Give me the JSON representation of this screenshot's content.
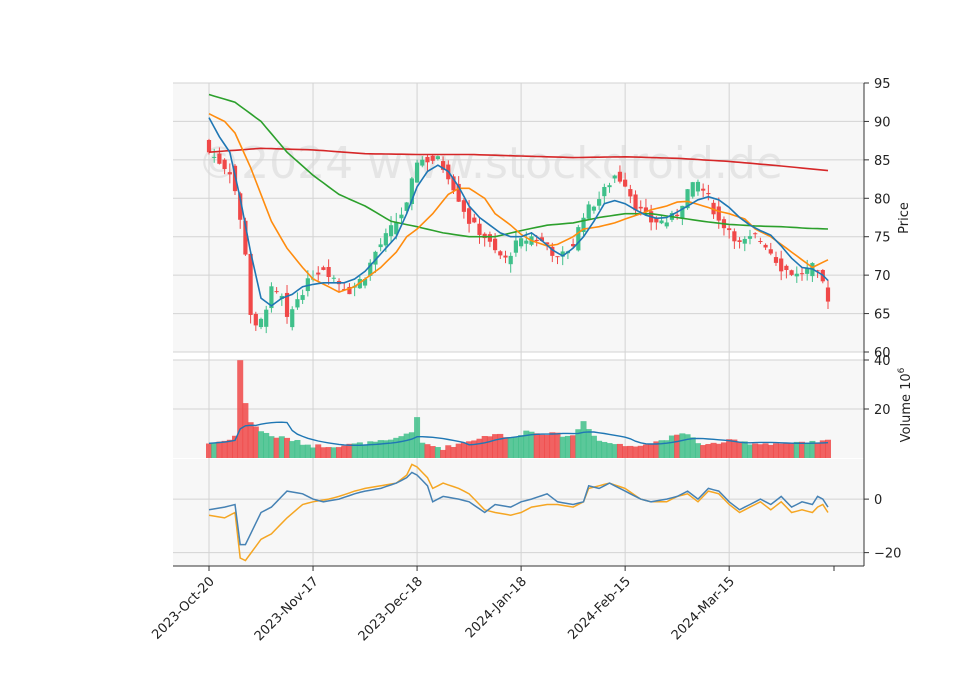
{
  "chart_data": {
    "type": "candlestick",
    "watermark": "©2024 www.stockdroid.de",
    "colors": {
      "up": "#3fc08a",
      "down": "#f04848",
      "ma_fast": "#1f77b4",
      "ma_mid": "#ff8c0e",
      "ma_slow": "#2ca02c",
      "ma_long": "#d62728",
      "volume_ma": "#1f77b4",
      "osc_fast": "#4682b4",
      "osc_slow": "#f5a623",
      "panel_bg": "#f7f7f7",
      "grid": "#d3d3d3"
    },
    "x_tick_labels": [
      "2023-Oct-20",
      "2023-Nov-17",
      "2023-Dec-18",
      "2024-Jan-18",
      "2024-Feb-15",
      "2024-Mar-15"
    ],
    "x_tick_indices": [
      0,
      20,
      40,
      60,
      80,
      100
    ],
    "panels": {
      "price": {
        "ylabel": "Price",
        "ylim": [
          60,
          95
        ],
        "ticks": [
          60,
          65,
          70,
          75,
          80,
          85,
          90,
          95
        ]
      },
      "volume": {
        "ylabel": "Volume",
        "ylabel_exponent": "6",
        "ylabel_base": "10",
        "ylim": [
          0,
          40
        ],
        "ticks": [
          20,
          40
        ]
      },
      "oscillator": {
        "ylim": [
          -25,
          15
        ],
        "ticks": [
          -20,
          0
        ],
        "tick_labels": [
          "−20",
          "0"
        ]
      }
    },
    "price_anchors": [
      [
        0,
        86
      ],
      [
        4,
        83.5
      ],
      [
        5,
        81
      ],
      [
        7,
        73
      ],
      [
        8,
        65
      ],
      [
        9,
        63
      ],
      [
        10,
        64
      ],
      [
        12,
        68
      ],
      [
        14,
        67
      ],
      [
        15,
        64
      ],
      [
        17,
        67
      ],
      [
        20,
        70
      ],
      [
        22,
        71
      ],
      [
        25,
        69
      ],
      [
        27,
        68
      ],
      [
        30,
        70
      ],
      [
        32,
        73
      ],
      [
        35,
        76
      ],
      [
        38,
        79
      ],
      [
        40,
        85
      ],
      [
        42,
        85
      ],
      [
        44,
        85
      ],
      [
        46,
        83
      ],
      [
        48,
        80
      ],
      [
        50,
        77
      ],
      [
        53,
        75
      ],
      [
        55,
        73
      ],
      [
        57,
        72
      ],
      [
        59,
        74
      ],
      [
        62,
        75
      ],
      [
        65,
        74
      ],
      [
        67,
        72
      ],
      [
        70,
        74
      ],
      [
        72,
        78
      ],
      [
        75,
        80
      ],
      [
        78,
        83
      ],
      [
        80,
        82
      ],
      [
        82,
        79
      ],
      [
        85,
        77
      ],
      [
        88,
        77
      ],
      [
        90,
        78
      ],
      [
        92,
        81
      ],
      [
        94,
        82
      ],
      [
        96,
        80
      ],
      [
        98,
        77
      ],
      [
        100,
        76
      ],
      [
        102,
        74
      ],
      [
        105,
        75
      ],
      [
        107,
        74
      ],
      [
        110,
        71
      ],
      [
        113,
        70
      ],
      [
        116,
        71
      ],
      [
        118,
        69
      ],
      [
        119,
        67
      ]
    ],
    "volume_anchors": [
      [
        0,
        6
      ],
      [
        3,
        7
      ],
      [
        5,
        9
      ],
      [
        6,
        40
      ],
      [
        7,
        22
      ],
      [
        8,
        15
      ],
      [
        10,
        11
      ],
      [
        12,
        9
      ],
      [
        15,
        8
      ],
      [
        18,
        6
      ],
      [
        20,
        5
      ],
      [
        25,
        5
      ],
      [
        30,
        6
      ],
      [
        35,
        7
      ],
      [
        39,
        11
      ],
      [
        40,
        16
      ],
      [
        41,
        6
      ],
      [
        45,
        4
      ],
      [
        50,
        7
      ],
      [
        55,
        10
      ],
      [
        58,
        8
      ],
      [
        61,
        11
      ],
      [
        65,
        10
      ],
      [
        70,
        9
      ],
      [
        72,
        15
      ],
      [
        75,
        7
      ],
      [
        80,
        5
      ],
      [
        85,
        6
      ],
      [
        88,
        8
      ],
      [
        90,
        9
      ],
      [
        92,
        10
      ],
      [
        95,
        5
      ],
      [
        100,
        7
      ],
      [
        105,
        6
      ],
      [
        110,
        6
      ],
      [
        115,
        6
      ],
      [
        119,
        7
      ]
    ],
    "osc_fast_anchors": [
      [
        0,
        -4
      ],
      [
        3,
        -3
      ],
      [
        5,
        -2
      ],
      [
        6,
        -17
      ],
      [
        7,
        -17
      ],
      [
        10,
        -5
      ],
      [
        12,
        -3
      ],
      [
        15,
        3
      ],
      [
        18,
        2
      ],
      [
        20,
        0
      ],
      [
        22,
        -1
      ],
      [
        25,
        0
      ],
      [
        28,
        2
      ],
      [
        30,
        3
      ],
      [
        33,
        4
      ],
      [
        36,
        6
      ],
      [
        38,
        8
      ],
      [
        39,
        10
      ],
      [
        40,
        9
      ],
      [
        42,
        5
      ],
      [
        43,
        -1
      ],
      [
        45,
        1
      ],
      [
        48,
        0
      ],
      [
        50,
        -1
      ],
      [
        53,
        -5
      ],
      [
        55,
        -2
      ],
      [
        58,
        -3
      ],
      [
        60,
        -1
      ],
      [
        62,
        0
      ],
      [
        65,
        2
      ],
      [
        67,
        -1
      ],
      [
        70,
        -2
      ],
      [
        72,
        -1
      ],
      [
        73,
        5
      ],
      [
        75,
        4
      ],
      [
        77,
        6
      ],
      [
        80,
        3
      ],
      [
        83,
        0
      ],
      [
        85,
        -1
      ],
      [
        88,
        0
      ],
      [
        90,
        1
      ],
      [
        92,
        3
      ],
      [
        94,
        0
      ],
      [
        96,
        4
      ],
      [
        98,
        3
      ],
      [
        100,
        -1
      ],
      [
        102,
        -4
      ],
      [
        104,
        -2
      ],
      [
        106,
        0
      ],
      [
        108,
        -2
      ],
      [
        110,
        1
      ],
      [
        112,
        -3
      ],
      [
        114,
        -1
      ],
      [
        116,
        -2
      ],
      [
        117,
        1
      ],
      [
        118,
        0
      ],
      [
        119,
        -3
      ]
    ],
    "osc_slow_anchors": [
      [
        0,
        -6
      ],
      [
        3,
        -7
      ],
      [
        5,
        -5
      ],
      [
        6,
        -22
      ],
      [
        7,
        -23
      ],
      [
        10,
        -15
      ],
      [
        12,
        -13
      ],
      [
        15,
        -7
      ],
      [
        18,
        -2
      ],
      [
        20,
        -1
      ],
      [
        23,
        0
      ],
      [
        25,
        1
      ],
      [
        28,
        3
      ],
      [
        30,
        4
      ],
      [
        33,
        5
      ],
      [
        36,
        6
      ],
      [
        38,
        9
      ],
      [
        39,
        13
      ],
      [
        40,
        12
      ],
      [
        42,
        8
      ],
      [
        43,
        4
      ],
      [
        45,
        6
      ],
      [
        48,
        4
      ],
      [
        50,
        2
      ],
      [
        53,
        -4
      ],
      [
        55,
        -5
      ],
      [
        58,
        -6
      ],
      [
        60,
        -5
      ],
      [
        62,
        -3
      ],
      [
        65,
        -2
      ],
      [
        67,
        -2
      ],
      [
        70,
        -3
      ],
      [
        72,
        -1
      ],
      [
        73,
        4
      ],
      [
        75,
        5
      ],
      [
        77,
        6
      ],
      [
        80,
        4
      ],
      [
        83,
        0
      ],
      [
        85,
        -1
      ],
      [
        88,
        -1
      ],
      [
        90,
        1
      ],
      [
        92,
        2
      ],
      [
        94,
        -1
      ],
      [
        96,
        3
      ],
      [
        98,
        2
      ],
      [
        100,
        -2
      ],
      [
        102,
        -5
      ],
      [
        104,
        -3
      ],
      [
        106,
        -1
      ],
      [
        108,
        -4
      ],
      [
        110,
        -1
      ],
      [
        112,
        -5
      ],
      [
        114,
        -4
      ],
      [
        116,
        -5
      ],
      [
        117,
        -3
      ],
      [
        118,
        -2
      ],
      [
        119,
        -5
      ]
    ],
    "ma_long_anchors": [
      [
        0,
        86
      ],
      [
        10,
        86.5
      ],
      [
        20,
        86.3
      ],
      [
        30,
        85.8
      ],
      [
        40,
        85.7
      ],
      [
        50,
        85.7
      ],
      [
        60,
        85.5
      ],
      [
        70,
        85.3
      ],
      [
        80,
        85.4
      ],
      [
        90,
        85.2
      ],
      [
        100,
        84.8
      ],
      [
        110,
        84.2
      ],
      [
        119,
        83.6
      ]
    ],
    "ma_slow_anchors": [
      [
        0,
        93.5
      ],
      [
        5,
        92.5
      ],
      [
        10,
        90
      ],
      [
        15,
        86
      ],
      [
        20,
        83
      ],
      [
        25,
        80.5
      ],
      [
        30,
        79
      ],
      [
        35,
        77
      ],
      [
        40,
        76.3
      ],
      [
        45,
        75.5
      ],
      [
        50,
        75
      ],
      [
        55,
        75
      ],
      [
        60,
        75.8
      ],
      [
        65,
        76.5
      ],
      [
        70,
        76.8
      ],
      [
        75,
        77.5
      ],
      [
        80,
        78
      ],
      [
        85,
        78
      ],
      [
        90,
        77.5
      ],
      [
        95,
        77
      ],
      [
        100,
        76.6
      ],
      [
        105,
        76.4
      ],
      [
        110,
        76.3
      ],
      [
        115,
        76.1
      ],
      [
        119,
        76
      ]
    ],
    "ma_mid_anchors": [
      [
        0,
        91
      ],
      [
        3,
        90
      ],
      [
        5,
        88.5
      ],
      [
        8,
        84
      ],
      [
        12,
        77
      ],
      [
        15,
        73.5
      ],
      [
        18,
        71
      ],
      [
        20,
        69.5
      ],
      [
        23,
        68.5
      ],
      [
        25,
        67.8
      ],
      [
        28,
        68.5
      ],
      [
        30,
        69.5
      ],
      [
        33,
        71
      ],
      [
        36,
        73
      ],
      [
        38,
        75
      ],
      [
        40,
        76
      ],
      [
        43,
        78
      ],
      [
        46,
        80.5
      ],
      [
        48,
        81.3
      ],
      [
        50,
        81.3
      ],
      [
        53,
        80
      ],
      [
        55,
        78
      ],
      [
        58,
        76.5
      ],
      [
        60,
        75.3
      ],
      [
        62,
        74.5
      ],
      [
        65,
        73.8
      ],
      [
        67,
        74
      ],
      [
        70,
        75
      ],
      [
        72,
        76
      ],
      [
        75,
        76.3
      ],
      [
        78,
        76.8
      ],
      [
        80,
        77.3
      ],
      [
        83,
        78
      ],
      [
        85,
        78.5
      ],
      [
        88,
        79
      ],
      [
        90,
        79.5
      ],
      [
        92,
        79.6
      ],
      [
        94,
        79.2
      ],
      [
        96,
        78.8
      ],
      [
        98,
        78.3
      ],
      [
        100,
        78
      ],
      [
        103,
        77.3
      ],
      [
        105,
        76
      ],
      [
        108,
        75
      ],
      [
        110,
        74
      ],
      [
        113,
        72.5
      ],
      [
        116,
        71
      ],
      [
        119,
        72
      ]
    ],
    "ma_fast_anchors": [
      [
        0,
        90.5
      ],
      [
        2,
        88
      ],
      [
        4,
        86
      ],
      [
        6,
        80
      ],
      [
        8,
        73
      ],
      [
        10,
        67
      ],
      [
        12,
        66
      ],
      [
        14,
        67
      ],
      [
        16,
        67.5
      ],
      [
        18,
        68.5
      ],
      [
        20,
        68.8
      ],
      [
        22,
        69
      ],
      [
        24,
        69
      ],
      [
        26,
        69
      ],
      [
        28,
        69.5
      ],
      [
        30,
        70.5
      ],
      [
        32,
        72
      ],
      [
        34,
        73.5
      ],
      [
        36,
        75
      ],
      [
        38,
        78
      ],
      [
        40,
        81.5
      ],
      [
        42,
        83.5
      ],
      [
        44,
        84.3
      ],
      [
        46,
        83.5
      ],
      [
        48,
        81.5
      ],
      [
        50,
        79
      ],
      [
        52,
        77.5
      ],
      [
        54,
        76.5
      ],
      [
        56,
        75.5
      ],
      [
        58,
        75
      ],
      [
        60,
        75
      ],
      [
        62,
        75.5
      ],
      [
        64,
        74.5
      ],
      [
        66,
        73.3
      ],
      [
        68,
        72.5
      ],
      [
        70,
        73.5
      ],
      [
        72,
        75
      ],
      [
        74,
        77
      ],
      [
        76,
        79.3
      ],
      [
        78,
        79.7
      ],
      [
        80,
        79.3
      ],
      [
        82,
        78.5
      ],
      [
        84,
        77.8
      ],
      [
        86,
        77.4
      ],
      [
        88,
        77.5
      ],
      [
        90,
        78.2
      ],
      [
        92,
        79
      ],
      [
        94,
        79.8
      ],
      [
        96,
        80.2
      ],
      [
        98,
        79.8
      ],
      [
        100,
        78.8
      ],
      [
        102,
        77.5
      ],
      [
        104,
        76.5
      ],
      [
        106,
        75.8
      ],
      [
        108,
        75.2
      ],
      [
        110,
        73.8
      ],
      [
        112,
        72.2
      ],
      [
        114,
        71
      ],
      [
        116,
        70.8
      ],
      [
        118,
        70
      ],
      [
        119,
        69.3
      ]
    ],
    "num_candles": 120
  }
}
